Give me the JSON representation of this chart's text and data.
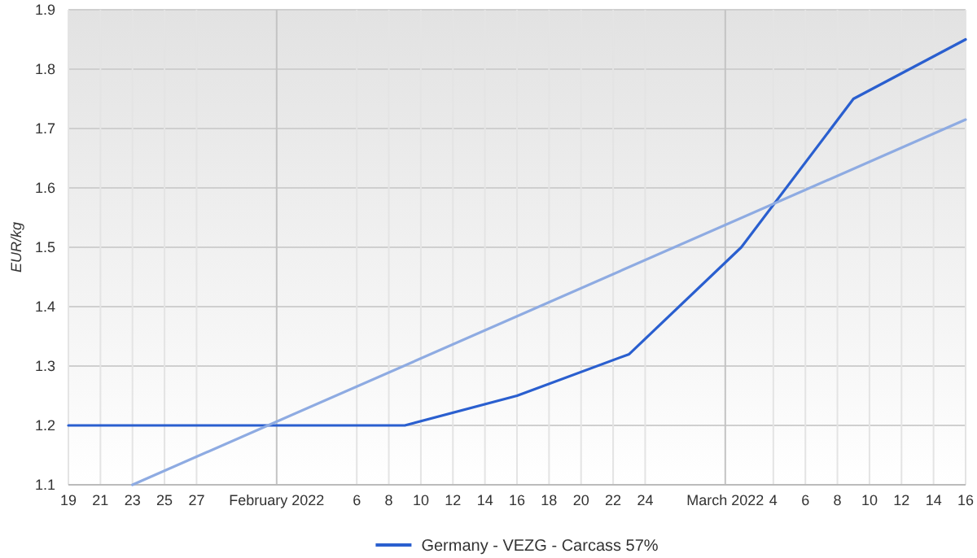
{
  "chart_data": {
    "type": "line",
    "ylabel": "EUR/kg",
    "xlim": [
      "2022-01-19",
      "2022-03-16"
    ],
    "ylim": [
      1.1,
      1.9
    ],
    "yticks": [
      1.1,
      1.2,
      1.3,
      1.4,
      1.5,
      1.6,
      1.7,
      1.8,
      1.9
    ],
    "xticks": [
      {
        "value": "2022-01-19",
        "label": "19"
      },
      {
        "value": "2022-01-21",
        "label": "21"
      },
      {
        "value": "2022-01-23",
        "label": "23"
      },
      {
        "value": "2022-01-25",
        "label": "25"
      },
      {
        "value": "2022-01-27",
        "label": "27"
      },
      {
        "value": "2022-02-01",
        "label": "February 2022"
      },
      {
        "value": "2022-02-06",
        "label": "6"
      },
      {
        "value": "2022-02-08",
        "label": "8"
      },
      {
        "value": "2022-02-10",
        "label": "10"
      },
      {
        "value": "2022-02-12",
        "label": "12"
      },
      {
        "value": "2022-02-14",
        "label": "14"
      },
      {
        "value": "2022-02-16",
        "label": "16"
      },
      {
        "value": "2022-02-18",
        "label": "18"
      },
      {
        "value": "2022-02-20",
        "label": "20"
      },
      {
        "value": "2022-02-22",
        "label": "22"
      },
      {
        "value": "2022-02-24",
        "label": "24"
      },
      {
        "value": "2022-03-01",
        "label": "March 2022"
      },
      {
        "value": "2022-03-04",
        "label": "4"
      },
      {
        "value": "2022-03-06",
        "label": "6"
      },
      {
        "value": "2022-03-08",
        "label": "8"
      },
      {
        "value": "2022-03-10",
        "label": "10"
      },
      {
        "value": "2022-03-12",
        "label": "12"
      },
      {
        "value": "2022-03-14",
        "label": "14"
      },
      {
        "value": "2022-03-16",
        "label": "16"
      }
    ],
    "grid": true,
    "legend": "bottom",
    "marker": "none",
    "line_style": "solid",
    "series": [
      {
        "name": "Germany - VEZG - Carcass 57%",
        "color": "#2a5fcf",
        "x": [
          "2022-01-19",
          "2022-01-26",
          "2022-02-02",
          "2022-02-09",
          "2022-02-16",
          "2022-02-23",
          "2022-03-02",
          "2022-03-09",
          "2022-03-16"
        ],
        "values": [
          1.2,
          1.2,
          1.2,
          1.2,
          1.25,
          1.32,
          1.5,
          1.75,
          1.85
        ]
      },
      {
        "type": "line",
        "color": "#8eabe2",
        "x": [
          "2022-01-23",
          "2022-03-16"
        ],
        "values": [
          1.1,
          1.715
        ]
      }
    ]
  }
}
